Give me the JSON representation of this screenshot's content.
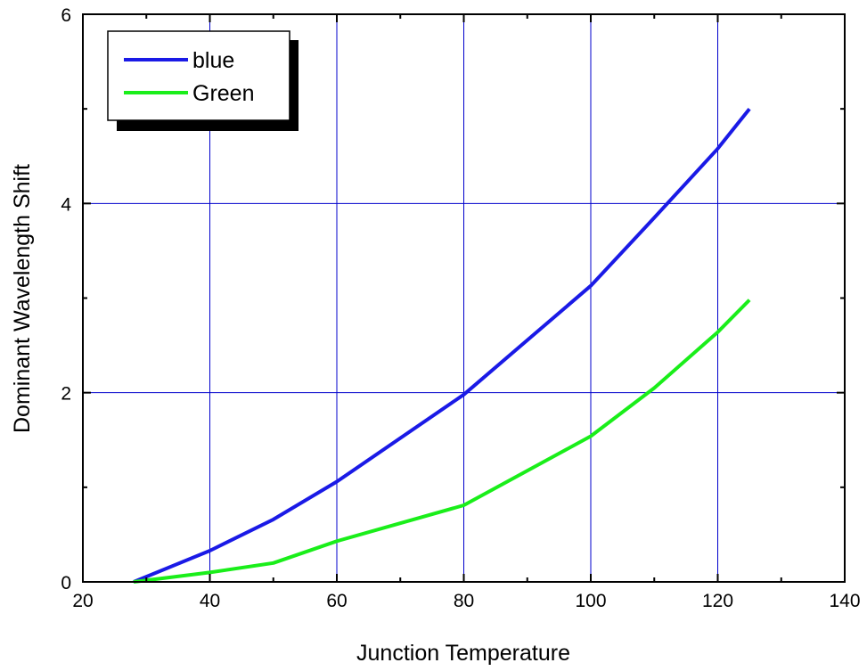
{
  "chart_data": {
    "type": "line",
    "title": "",
    "xlabel": "Junction Temperature",
    "ylabel": "Dominant Wavelength Shift",
    "xlim": [
      20,
      140
    ],
    "ylim": [
      0,
      6
    ],
    "x_major_ticks": [
      "20",
      "40",
      "60",
      "80",
      "100",
      "120",
      "140"
    ],
    "y_major_ticks": [
      "0",
      "2",
      "4",
      "6"
    ],
    "x_major_values": [
      20,
      40,
      60,
      80,
      100,
      120,
      140
    ],
    "y_major_values": [
      0,
      2,
      4,
      6
    ],
    "x_minor_values": [
      30,
      50,
      70,
      90,
      110,
      130
    ],
    "y_minor_values": [
      1,
      3,
      5
    ],
    "grid_x": [
      40,
      60,
      80,
      100,
      120
    ],
    "grid_y": [
      2,
      4
    ],
    "grid": true,
    "grid_color": "#0000cc",
    "legend_position": "top-left",
    "series": [
      {
        "name": "blue",
        "color": "#1a1ae6",
        "x": [
          28,
          40,
          50,
          60,
          80,
          100,
          110,
          120,
          125
        ],
        "y": [
          0,
          0.33,
          0.66,
          1.06,
          1.98,
          3.13,
          3.85,
          4.58,
          5.0
        ]
      },
      {
        "name": "Green",
        "color": "#1aee1a",
        "x": [
          28,
          40,
          50,
          60,
          80,
          100,
          110,
          120,
          125
        ],
        "y": [
          0,
          0.1,
          0.2,
          0.43,
          0.81,
          1.54,
          2.05,
          2.64,
          2.98
        ]
      }
    ]
  }
}
